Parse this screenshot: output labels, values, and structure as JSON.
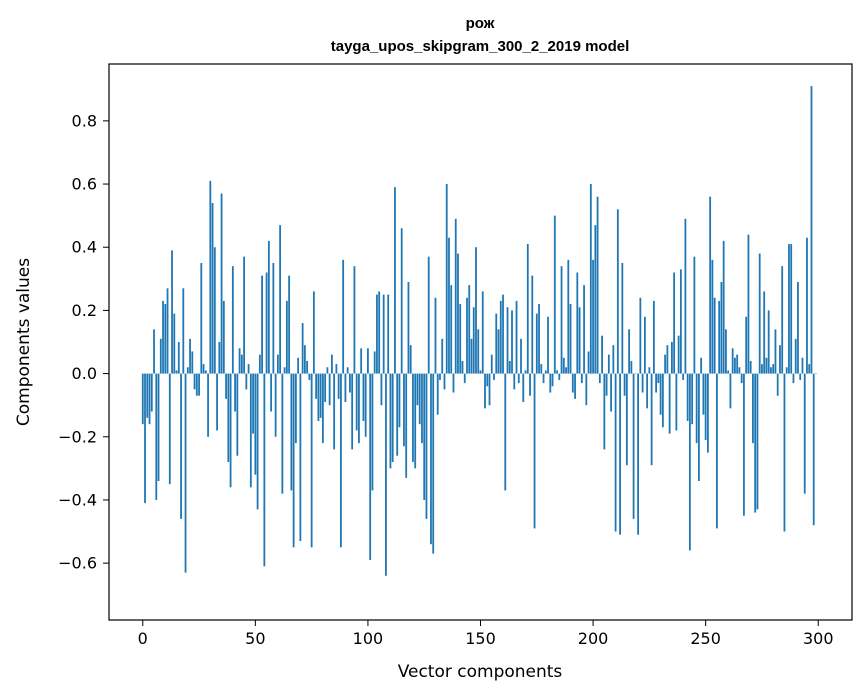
{
  "chart_data": {
    "type": "bar",
    "title": "рож",
    "subtitle": "tayga_upos_skipgram_300_2_2019 model",
    "xlabel": "Vector components",
    "ylabel": "Components values",
    "xlim": [
      -15,
      315
    ],
    "ylim": [
      -0.78,
      0.98
    ],
    "xticks": [
      0,
      50,
      100,
      150,
      200,
      250,
      300
    ],
    "xtick_labels": [
      "0",
      "50",
      "100",
      "150",
      "200",
      "250",
      "300"
    ],
    "yticks": [
      -0.6,
      -0.4,
      -0.2,
      0.0,
      0.2,
      0.4,
      0.6,
      0.8
    ],
    "ytick_labels": [
      "−0.6",
      "−0.4",
      "−0.2",
      "0.0",
      "0.2",
      "0.4",
      "0.6",
      "0.8"
    ],
    "bar_color": "#1f77b4",
    "grid": false,
    "x": "0..299 (one bar per vector component index)",
    "values": [
      -0.16,
      -0.41,
      -0.14,
      -0.16,
      -0.12,
      0.14,
      -0.4,
      -0.34,
      0.11,
      0.23,
      0.22,
      0.27,
      -0.35,
      0.39,
      0.19,
      0.01,
      0.1,
      -0.46,
      0.27,
      -0.63,
      0.02,
      0.11,
      0.07,
      -0.05,
      -0.07,
      -0.07,
      0.35,
      0.03,
      0.01,
      -0.2,
      0.61,
      0.54,
      0.4,
      -0.18,
      0.1,
      0.57,
      0.23,
      -0.08,
      -0.28,
      -0.36,
      0.34,
      -0.12,
      -0.26,
      0.08,
      0.06,
      0.37,
      -0.05,
      0.03,
      -0.36,
      -0.19,
      -0.32,
      -0.43,
      0.06,
      0.31,
      -0.61,
      0.32,
      0.42,
      -0.12,
      0.35,
      -0.2,
      0.06,
      0.47,
      -0.38,
      0.02,
      0.23,
      0.31,
      -0.37,
      -0.55,
      -0.22,
      0.05,
      -0.53,
      0.16,
      0.09,
      0.04,
      -0.02,
      -0.55,
      0.26,
      -0.08,
      -0.15,
      -0.14,
      -0.22,
      -0.09,
      0.02,
      -0.1,
      0.06,
      -0.24,
      0.03,
      -0.08,
      -0.55,
      0.36,
      -0.09,
      0.02,
      -0.06,
      -0.24,
      0.34,
      -0.18,
      -0.22,
      0.08,
      -0.15,
      -0.2,
      0.08,
      -0.59,
      -0.37,
      0.07,
      0.25,
      0.26,
      -0.1,
      0.25,
      -0.64,
      0.25,
      -0.3,
      -0.28,
      0.59,
      -0.26,
      -0.17,
      0.46,
      -0.23,
      -0.33,
      0.29,
      0.09,
      -0.28,
      -0.3,
      -0.1,
      -0.16,
      -0.22,
      -0.4,
      -0.46,
      0.37,
      -0.54,
      -0.57,
      0.24,
      -0.13,
      -0.02,
      0.11,
      -0.05,
      0.6,
      0.43,
      0.28,
      -0.06,
      0.49,
      0.38,
      0.22,
      0.04,
      -0.03,
      0.24,
      0.28,
      0.11,
      0.21,
      0.4,
      0.14,
      0.01,
      0.26,
      -0.11,
      -0.04,
      -0.1,
      0.06,
      -0.02,
      0.19,
      0.14,
      0.23,
      0.25,
      -0.37,
      0.21,
      0.04,
      0.2,
      -0.05,
      0.23,
      -0.03,
      0.11,
      -0.09,
      0.01,
      0.41,
      -0.07,
      0.31,
      -0.49,
      0.19,
      0.22,
      0.03,
      -0.03,
      0.01,
      0.18,
      -0.06,
      -0.04,
      0.5,
      0.01,
      -0.02,
      0.34,
      0.05,
      0.02,
      0.36,
      0.22,
      -0.06,
      -0.08,
      0.32,
      0.21,
      -0.03,
      0.28,
      -0.1,
      0.07,
      0.6,
      0.36,
      0.47,
      0.56,
      -0.03,
      0.12,
      -0.24,
      -0.07,
      0.06,
      -0.12,
      0.09,
      -0.5,
      0.52,
      -0.51,
      0.35,
      -0.07,
      -0.29,
      0.14,
      0.04,
      -0.46,
      0.0,
      -0.51,
      0.24,
      -0.06,
      0.18,
      -0.11,
      0.02,
      -0.29,
      0.23,
      -0.06,
      -0.03,
      -0.13,
      -0.17,
      0.06,
      0.09,
      -0.19,
      0.1,
      0.32,
      -0.18,
      0.12,
      0.33,
      -0.02,
      0.49,
      -0.15,
      -0.56,
      -0.16,
      0.37,
      -0.22,
      -0.34,
      0.05,
      -0.13,
      -0.21,
      -0.25,
      0.56,
      0.36,
      0.24,
      -0.49,
      0.23,
      0.29,
      0.42,
      0.14,
      0.01,
      -0.11,
      0.08,
      0.05,
      0.06,
      0.02,
      -0.03,
      -0.45,
      0.18,
      0.44,
      0.04,
      -0.22,
      -0.44,
      -0.43,
      0.38,
      0.03,
      0.26,
      0.05,
      0.2,
      0.02,
      0.03,
      0.14,
      -0.07,
      0.09,
      0.34,
      -0.5,
      0.02,
      0.41,
      0.41,
      -0.03,
      0.11,
      0.29,
      -0.02,
      0.05,
      -0.38,
      0.43,
      0.03,
      0.91,
      -0.48,
      0.0
    ]
  }
}
